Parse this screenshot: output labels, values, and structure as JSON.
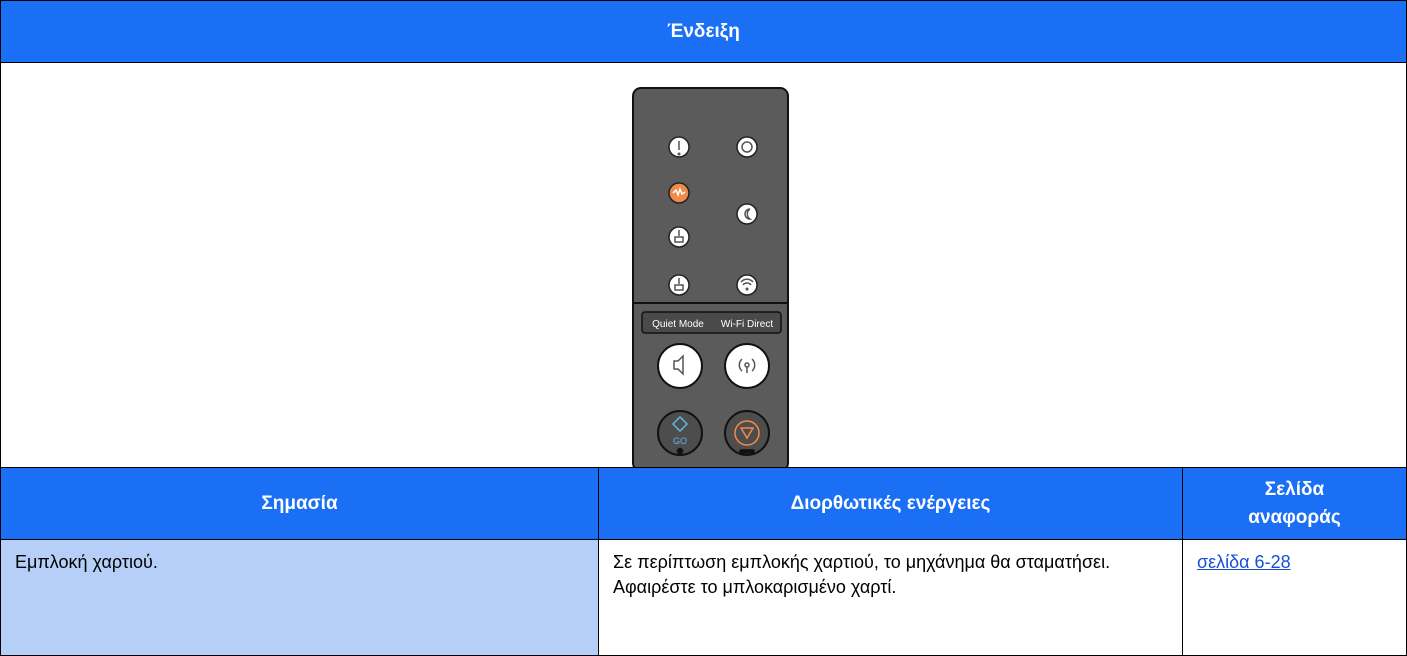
{
  "header": {
    "title": "Ένδειξη"
  },
  "panel": {
    "quiet_mode": "Quiet Mode",
    "wifi_direct": "Wi-Fi Direct",
    "go": "GO"
  },
  "table": {
    "columns": [
      "Σημασία",
      "Διορθωτικές ενέργειες",
      "Σελίδα αναφοράς"
    ],
    "rows": [
      [
        "Εμπλοκή χαρτιού.",
        "Σε περίπτωση εμπλοκής χαρτιού, το μηχάνημα θα σταματήσει. Αφαιρέστε το μπλοκαρισμένο χαρτί.",
        "σελίδα 6-28"
      ]
    ]
  }
}
